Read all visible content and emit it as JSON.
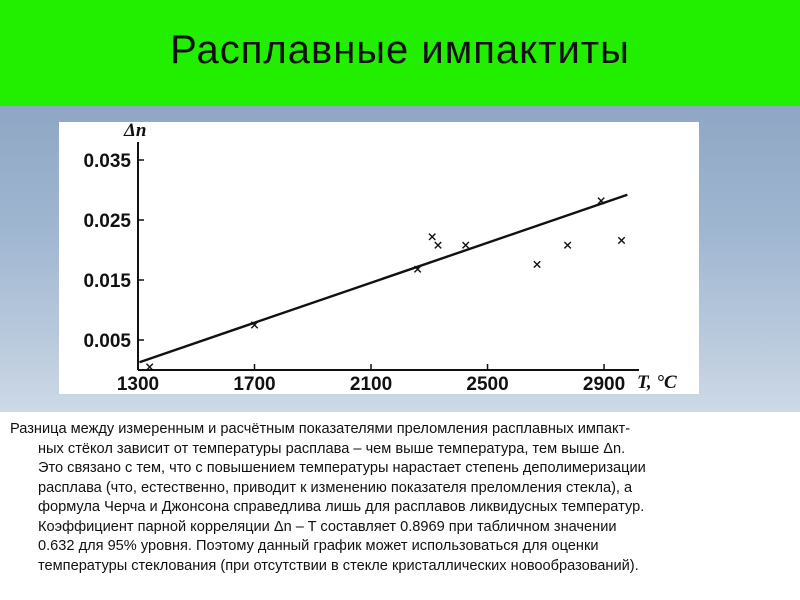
{
  "slide": {
    "title": "Расплавные импактиты",
    "colors": {
      "title_background": "#22ee00",
      "panel_background": "#9fb6d1"
    }
  },
  "chart_data": {
    "type": "scatter",
    "ylabel": "Δn",
    "xlabel": "T, °C",
    "xlim": [
      1300,
      3020
    ],
    "ylim": [
      0.0,
      0.038
    ],
    "x_ticks": [
      1300,
      1700,
      2100,
      2500,
      2900
    ],
    "y_ticks": [
      0.005,
      0.015,
      0.025,
      0.035
    ],
    "x_tick_labels": [
      "1300",
      "1700",
      "2100",
      "2500",
      "2900"
    ],
    "y_tick_labels": [
      "0.005",
      "0.015",
      "0.025",
      "0.035"
    ],
    "grid": false,
    "series": [
      {
        "marker": "x",
        "points": [
          {
            "x": 1340,
            "y": 0.0005
          },
          {
            "x": 1700,
            "y": 0.0075
          },
          {
            "x": 2260,
            "y": 0.0168
          },
          {
            "x": 2310,
            "y": 0.0222
          },
          {
            "x": 2330,
            "y": 0.0208
          },
          {
            "x": 2425,
            "y": 0.0208
          },
          {
            "x": 2670,
            "y": 0.0176
          },
          {
            "x": 2775,
            "y": 0.0208
          },
          {
            "x": 2890,
            "y": 0.0282
          },
          {
            "x": 2960,
            "y": 0.0216
          }
        ]
      }
    ],
    "fit_line": {
      "x": [
        1305,
        2980
      ],
      "y": [
        0.0013,
        0.0292
      ]
    }
  },
  "caption": {
    "line1": "Разница между измеренным и расчётным показателями преломления расплавных импакт-",
    "line2": "ных стёкол зависит от температуры расплава – чем выше температура, тем выше Δn.",
    "line3": "Это связано с тем, что с повышением температуры нарастает степень деполимеризации",
    "line4": "расплава (что, естественно, приводит к изменению показателя преломления стекла), а",
    "line5": "формула Черча и Джонсона справедлива лишь для расплавов ликвидусных температур.",
    "line6": "Коэффициент парной корреляции Δn – T  составляет 0.8969 при табличном значении",
    "line7": "0.632 для 95% уровня. Поэтому данный график может использоваться для оценки",
    "line8": "температуры стеклования (при отсутствии в стекле кристаллических новообразований)."
  }
}
